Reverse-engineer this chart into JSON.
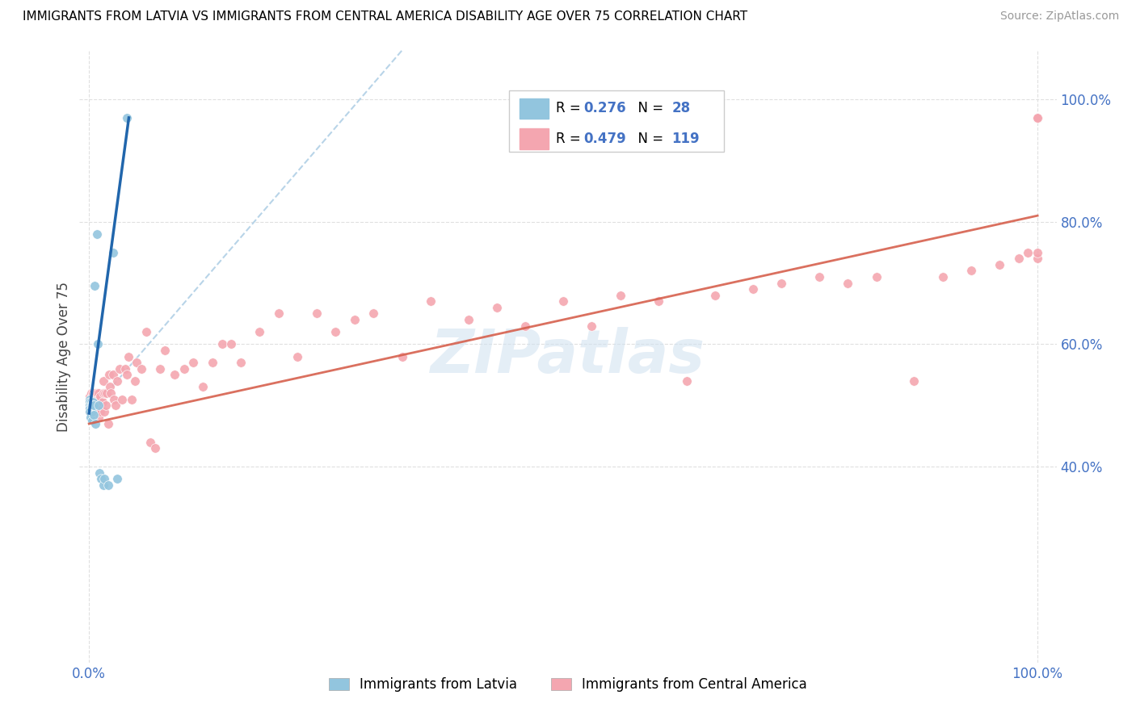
{
  "title": "IMMIGRANTS FROM LATVIA VS IMMIGRANTS FROM CENTRAL AMERICA DISABILITY AGE OVER 75 CORRELATION CHART",
  "source": "Source: ZipAtlas.com",
  "ylabel": "Disability Age Over 75",
  "watermark": "ZIPatlas",
  "legend_latvia": "Immigrants from Latvia",
  "legend_central_america": "Immigrants from Central America",
  "R_latvia": 0.276,
  "N_latvia": 28,
  "R_central": 0.479,
  "N_central": 119,
  "color_latvia": "#92c5de",
  "color_central": "#f4a6b0",
  "color_trendline_latvia": "#2166ac",
  "color_trendline_central": "#d6604d",
  "color_trendline_latvia_dashed": "#b8d4e8",
  "color_axis_labels": "#4472c4",
  "color_grid": "#e0e0e0",
  "xlim": [
    -0.01,
    1.02
  ],
  "ylim": [
    0.08,
    1.08
  ],
  "yticks": [
    0.4,
    0.6,
    0.8,
    1.0
  ],
  "ytick_labels": [
    "40.0%",
    "60.0%",
    "80.0%",
    "100.0%"
  ],
  "xticks": [
    0.0,
    1.0
  ],
  "xtick_labels": [
    "0.0%",
    "100.0%"
  ],
  "latvia_x": [
    0.001,
    0.001,
    0.001,
    0.001,
    0.001,
    0.0015,
    0.002,
    0.002,
    0.003,
    0.003,
    0.003,
    0.004,
    0.004,
    0.005,
    0.005,
    0.006,
    0.007,
    0.008,
    0.009,
    0.01,
    0.011,
    0.013,
    0.015,
    0.016,
    0.02,
    0.025,
    0.03,
    0.04
  ],
  "latvia_y": [
    0.51,
    0.505,
    0.5,
    0.495,
    0.49,
    0.48,
    0.505,
    0.5,
    0.475,
    0.49,
    0.5,
    0.505,
    0.5,
    0.5,
    0.485,
    0.695,
    0.47,
    0.78,
    0.6,
    0.5,
    0.39,
    0.38,
    0.37,
    0.38,
    0.37,
    0.75,
    0.38,
    0.97
  ],
  "ca_x": [
    0.001,
    0.001,
    0.001,
    0.001,
    0.001,
    0.001,
    0.001,
    0.002,
    0.002,
    0.002,
    0.002,
    0.002,
    0.002,
    0.003,
    0.003,
    0.003,
    0.003,
    0.004,
    0.004,
    0.004,
    0.005,
    0.005,
    0.005,
    0.006,
    0.006,
    0.006,
    0.007,
    0.007,
    0.007,
    0.008,
    0.008,
    0.009,
    0.009,
    0.01,
    0.01,
    0.011,
    0.011,
    0.012,
    0.012,
    0.013,
    0.014,
    0.015,
    0.015,
    0.016,
    0.017,
    0.018,
    0.019,
    0.02,
    0.021,
    0.022,
    0.023,
    0.025,
    0.026,
    0.028,
    0.03,
    0.032,
    0.035,
    0.038,
    0.04,
    0.042,
    0.045,
    0.048,
    0.05,
    0.055,
    0.06,
    0.065,
    0.07,
    0.075,
    0.08,
    0.09,
    0.1,
    0.11,
    0.12,
    0.13,
    0.14,
    0.15,
    0.16,
    0.18,
    0.2,
    0.22,
    0.24,
    0.26,
    0.28,
    0.3,
    0.33,
    0.36,
    0.4,
    0.43,
    0.46,
    0.5,
    0.53,
    0.56,
    0.6,
    0.63,
    0.66,
    0.7,
    0.73,
    0.77,
    0.8,
    0.83,
    0.87,
    0.9,
    0.93,
    0.96,
    0.98,
    0.99,
    1.0,
    1.0,
    1.0,
    1.0,
    1.0,
    1.0,
    1.0,
    1.0,
    1.0,
    1.0,
    1.0,
    1.0,
    1.0
  ],
  "ca_y": [
    0.5,
    0.505,
    0.51,
    0.49,
    0.515,
    0.5,
    0.495,
    0.5,
    0.51,
    0.49,
    0.505,
    0.52,
    0.495,
    0.49,
    0.51,
    0.5,
    0.515,
    0.5,
    0.52,
    0.505,
    0.49,
    0.51,
    0.505,
    0.5,
    0.515,
    0.52,
    0.49,
    0.51,
    0.505,
    0.5,
    0.52,
    0.49,
    0.51,
    0.48,
    0.52,
    0.5,
    0.51,
    0.49,
    0.515,
    0.5,
    0.505,
    0.52,
    0.54,
    0.49,
    0.52,
    0.5,
    0.52,
    0.47,
    0.55,
    0.53,
    0.52,
    0.55,
    0.51,
    0.5,
    0.54,
    0.56,
    0.51,
    0.56,
    0.55,
    0.58,
    0.51,
    0.54,
    0.57,
    0.56,
    0.62,
    0.44,
    0.43,
    0.56,
    0.59,
    0.55,
    0.56,
    0.57,
    0.53,
    0.57,
    0.6,
    0.6,
    0.57,
    0.62,
    0.65,
    0.58,
    0.65,
    0.62,
    0.64,
    0.65,
    0.58,
    0.67,
    0.64,
    0.66,
    0.63,
    0.67,
    0.63,
    0.68,
    0.67,
    0.54,
    0.68,
    0.69,
    0.7,
    0.71,
    0.7,
    0.71,
    0.54,
    0.71,
    0.72,
    0.73,
    0.74,
    0.75,
    0.74,
    0.97,
    0.97,
    0.97,
    0.97,
    0.97,
    0.97,
    0.97,
    0.97,
    0.97,
    0.97,
    0.97,
    0.75
  ],
  "trendline_ca_x0": 0.0,
  "trendline_ca_x1": 1.0,
  "trendline_ca_y0": 0.47,
  "trendline_ca_y1": 0.81,
  "trendline_lv_x0": 0.0,
  "trendline_lv_x1": 0.042,
  "trendline_lv_y0": 0.487,
  "trendline_lv_y1": 0.97,
  "trendline_lv_dash_x0": 0.0,
  "trendline_lv_dash_x1": 0.33,
  "trendline_lv_dash_y0": 0.487,
  "trendline_lv_dash_y1": 1.08
}
